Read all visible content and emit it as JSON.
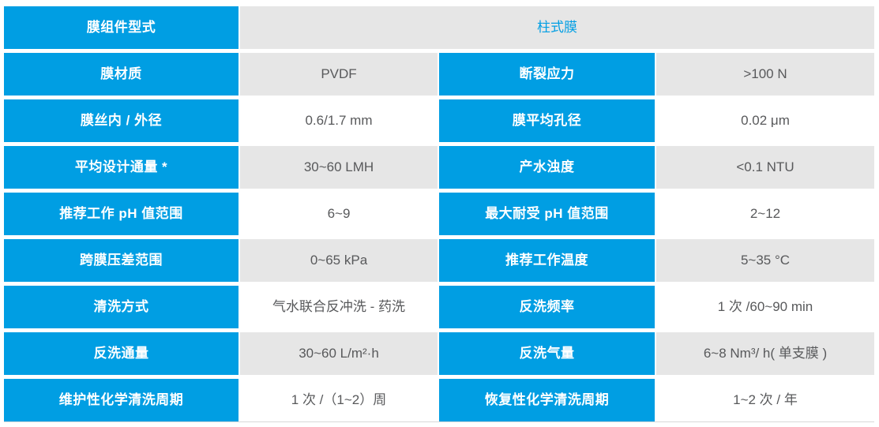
{
  "colors": {
    "accent_blue": "#009EE3",
    "cell_gray": "#E6E6E6",
    "value_text": "#58595B",
    "border": "#D9D9D9"
  },
  "table": {
    "header": {
      "label": "膜组件型式",
      "value": "柱式膜"
    },
    "rows": [
      {
        "label1": "膜材质",
        "value1": "PVDF",
        "label2": "断裂应力",
        "value2": ">100 N"
      },
      {
        "label1": "膜丝内 / 外径",
        "value1": "0.6/1.7 mm",
        "label2": "膜平均孔径",
        "value2": "0.02 μm"
      },
      {
        "label1": "平均设计通量 *",
        "value1": "30~60 LMH",
        "label2": "产水浊度",
        "value2": "<0.1 NTU"
      },
      {
        "label1": "推荐工作 pH 值范围",
        "value1": "6~9",
        "label2": "最大耐受 pH 值范围",
        "value2": "2~12"
      },
      {
        "label1": "跨膜压差范围",
        "value1": "0~65 kPa",
        "label2": "推荐工作温度",
        "value2": "5~35 °C"
      },
      {
        "label1": "清洗方式",
        "value1": "气水联合反冲洗 - 药洗",
        "label2": "反洗频率",
        "value2": "1 次 /60~90 min"
      },
      {
        "label1": "反洗通量",
        "value1": "30~60 L/m²·h",
        "label2": "反洗气量",
        "value2": "6~8 Nm³/ h( 单支膜 )"
      },
      {
        "label1": "维护性化学清洗周期",
        "value1": "1 次 /（1~2）周",
        "label2": "恢复性化学清洗周期",
        "value2": "1~2 次 / 年"
      }
    ]
  }
}
